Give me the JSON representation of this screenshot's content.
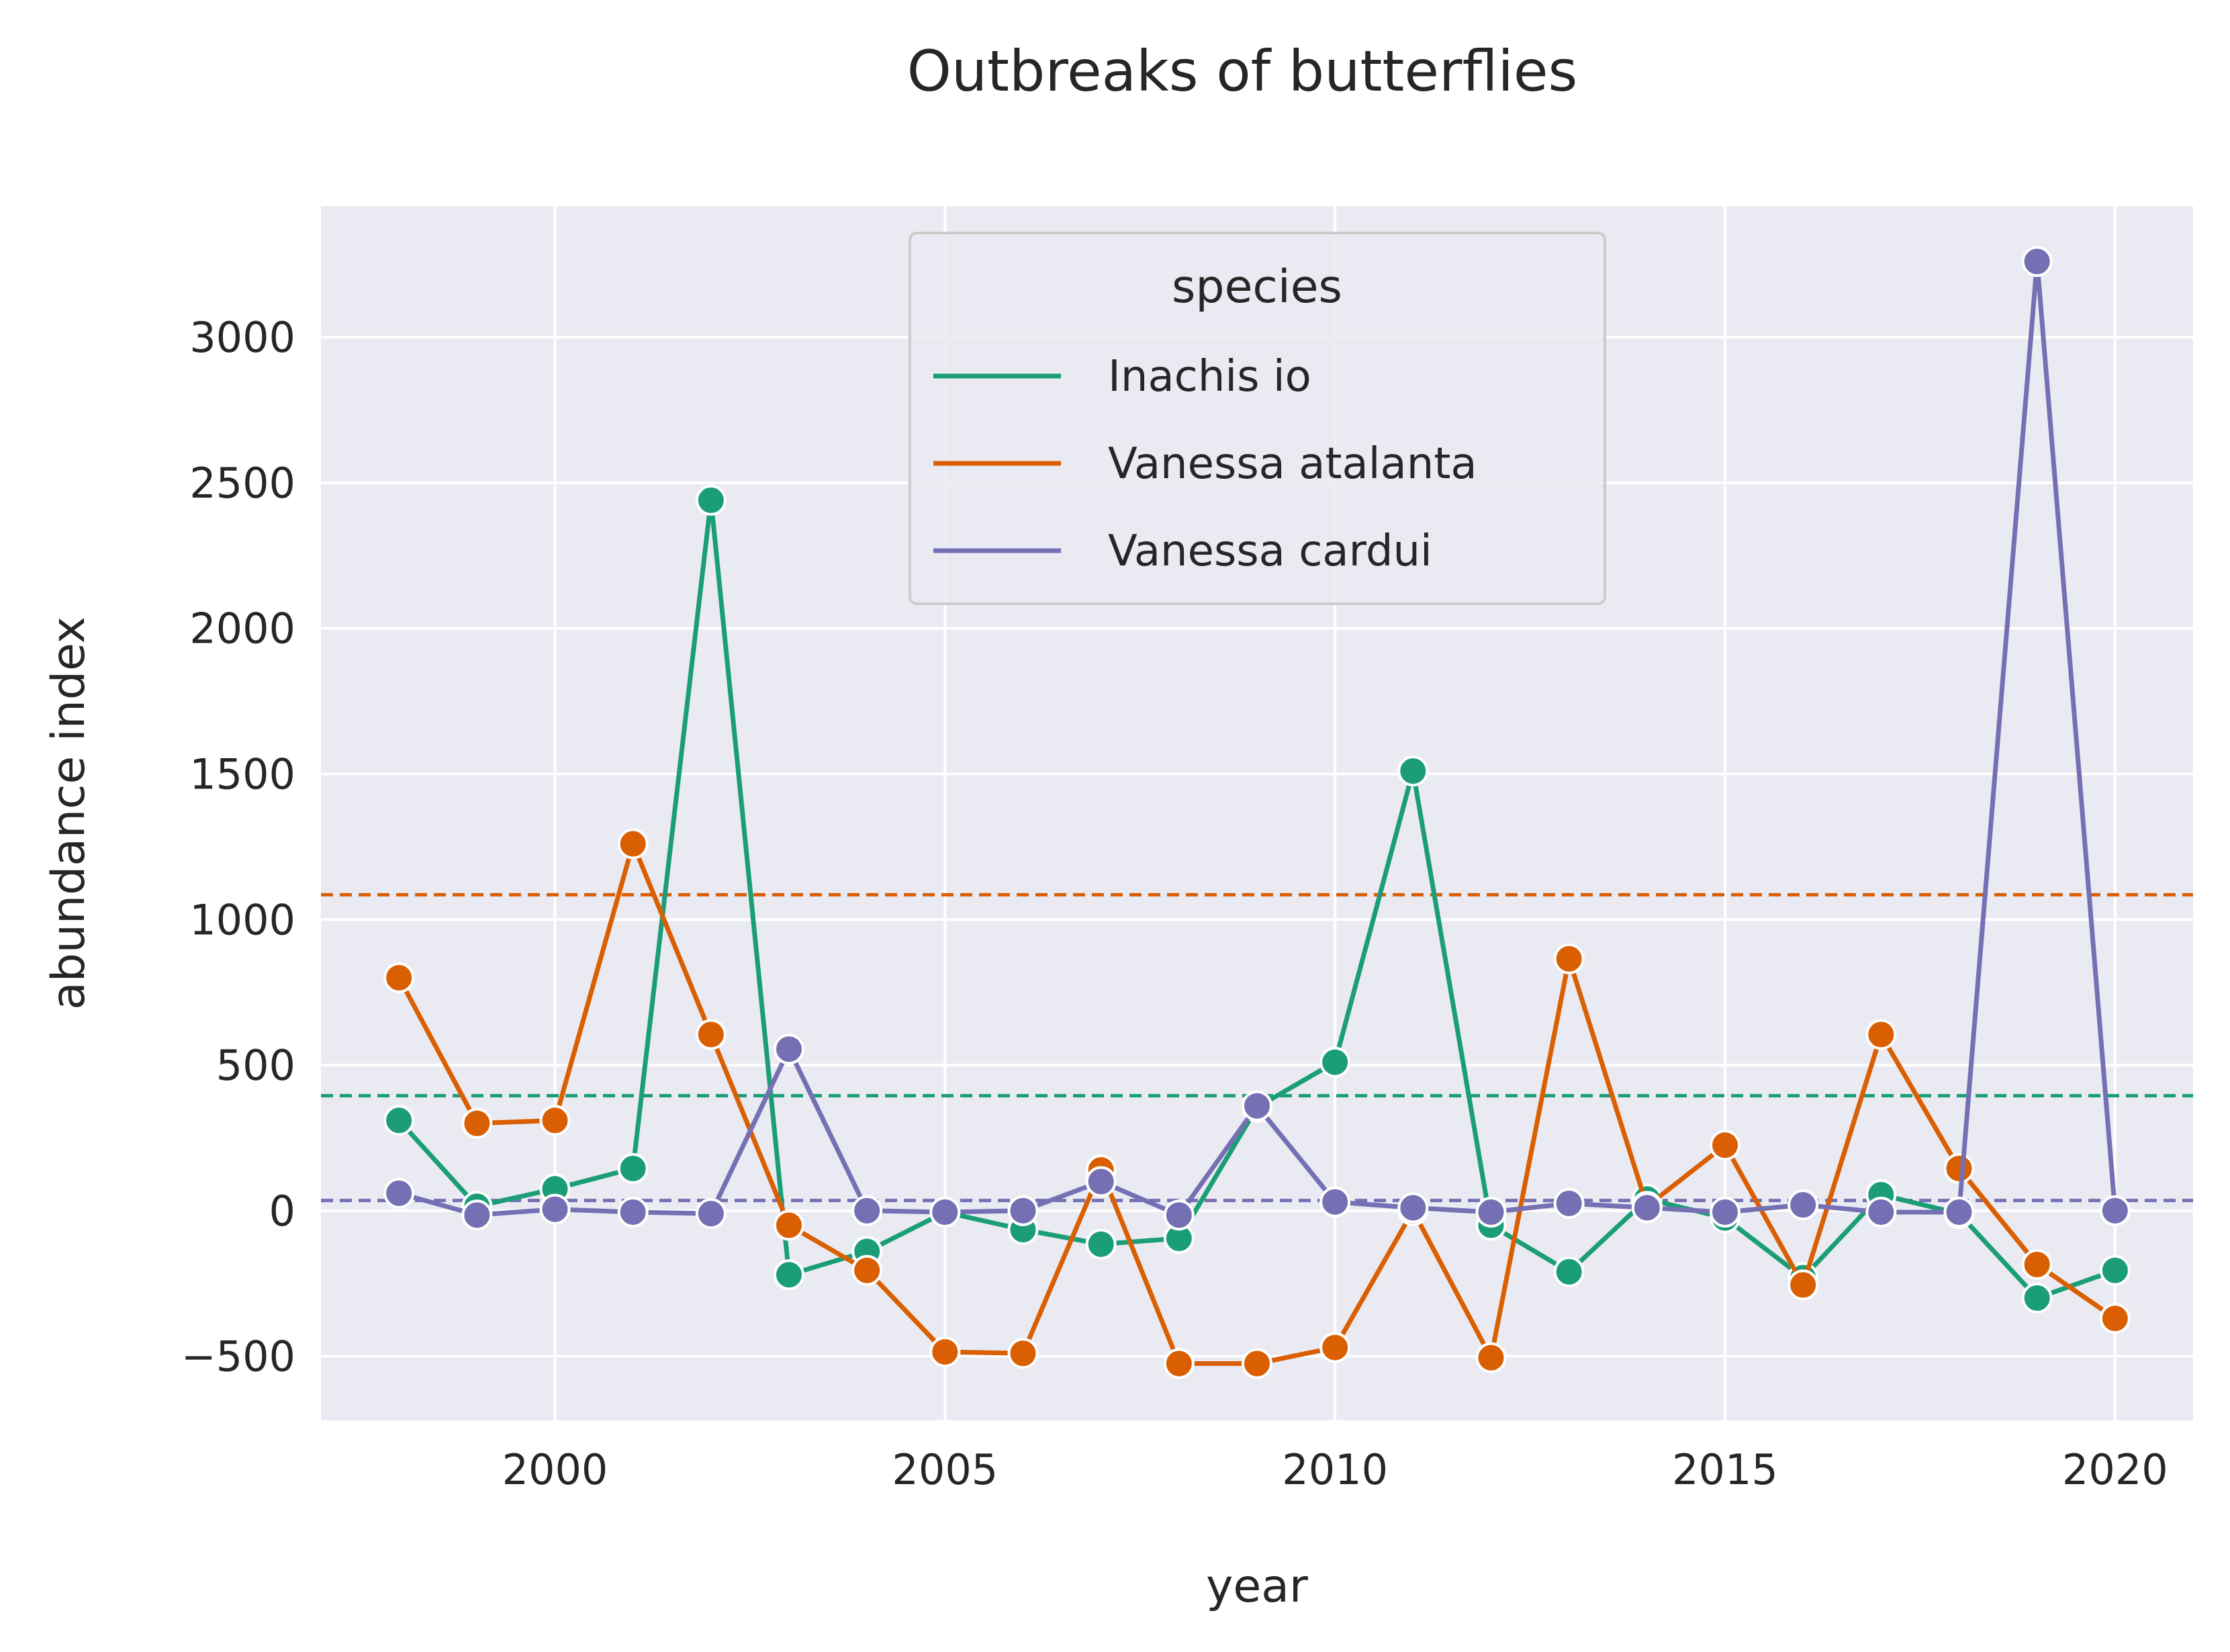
{
  "chart_data": {
    "type": "line",
    "title": "Outbreaks of butterflies",
    "xlabel": "year",
    "ylabel": "abundance index",
    "x": [
      1998,
      1999,
      2000,
      2001,
      2002,
      2003,
      2004,
      2005,
      2006,
      2007,
      2008,
      2009,
      2010,
      2011,
      2012,
      2013,
      2014,
      2015,
      2016,
      2017,
      2018,
      2019,
      2020
    ],
    "xlim": [
      1997,
      2021
    ],
    "ylim": [
      -720,
      3450
    ],
    "xticks": [
      2000,
      2005,
      2010,
      2015,
      2020
    ],
    "yticks": [
      -500,
      0,
      500,
      1000,
      1500,
      2000,
      2500,
      3000
    ],
    "ytick_labels": [
      "−500",
      "0",
      "500",
      "1000",
      "1500",
      "2000",
      "2500",
      "3000"
    ],
    "grid": true,
    "legend": {
      "title": "species",
      "placement": "top-center"
    },
    "series": [
      {
        "name": "Inachis io",
        "color": "#1b9e77",
        "values": [
          310,
          15,
          75,
          145,
          2440,
          -220,
          -140,
          -5,
          -65,
          -115,
          -95,
          355,
          510,
          1510,
          -50,
          -210,
          40,
          -25,
          -230,
          55,
          -10,
          -300,
          -205
        ],
        "mean": 395
      },
      {
        "name": "Vanessa atalanta",
        "color": "#d95f02",
        "values": [
          800,
          300,
          310,
          1260,
          605,
          -50,
          -205,
          -485,
          -490,
          140,
          -525,
          -525,
          -470,
          0,
          -505,
          865,
          15,
          225,
          -255,
          605,
          145,
          -185,
          -370
        ],
        "mean": 1085
      },
      {
        "name": "Vanessa cardui",
        "color": "#7570b3",
        "values": [
          60,
          -15,
          5,
          -5,
          -10,
          555,
          0,
          -5,
          0,
          100,
          -15,
          360,
          30,
          10,
          -5,
          25,
          10,
          -5,
          20,
          -5,
          -5,
          3260,
          0
        ],
        "mean": 35
      }
    ]
  }
}
